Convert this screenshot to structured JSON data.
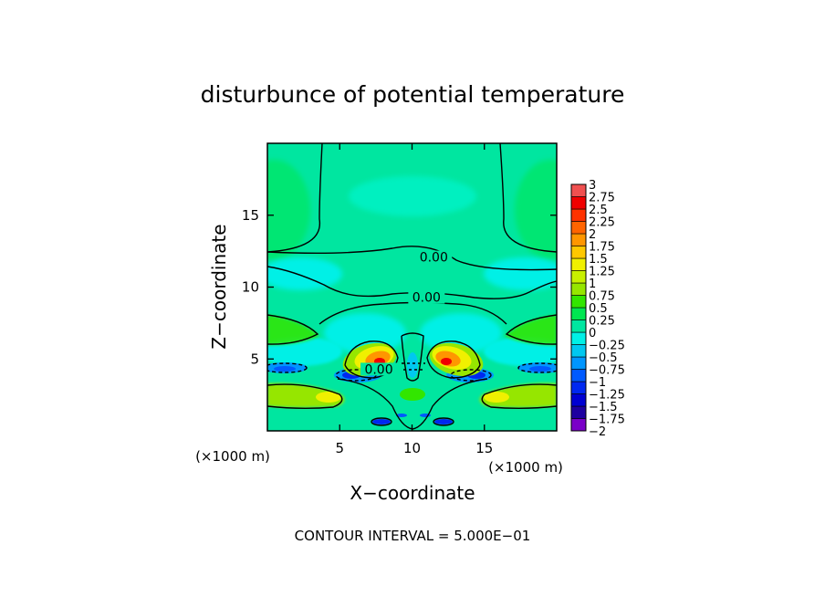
{
  "chart_data": {
    "type": "heatmap",
    "title": "disturbunce of potential temperature",
    "xlabel": "X−coordinate",
    "ylabel": "Z−coordinate",
    "x_unit": "(×1000 m)",
    "y_unit": "(×1000 m)",
    "xlim": [
      0,
      20
    ],
    "ylim": [
      0,
      20
    ],
    "x_ticks": [
      5,
      10,
      15
    ],
    "y_ticks": [
      5,
      10,
      15
    ],
    "x_tick_labels": [
      "5",
      "10",
      "15"
    ],
    "y_tick_labels": [
      "5",
      "10",
      "15"
    ],
    "footer": "CONTOUR INTERVAL = 5.000E−01",
    "contour_labels": [
      {
        "text": "0.00",
        "x": 11.5,
        "z": 11.9
      },
      {
        "text": "0.00",
        "x": 11.0,
        "z": 9.1
      },
      {
        "text": "0.00",
        "x": 7.7,
        "z": 4.1
      }
    ],
    "colorbar": {
      "levels": [
        -2,
        -1.75,
        -1.5,
        -1.25,
        -1,
        -0.75,
        -0.5,
        -0.25,
        0,
        0.25,
        0.5,
        0.75,
        1,
        1.25,
        1.5,
        1.75,
        2,
        2.25,
        2.5,
        2.75,
        3
      ],
      "labels": [
        "−2",
        "−1.75",
        "−1.5",
        "−1.25",
        "−1",
        "−0.75",
        "−0.5",
        "−0.25",
        "0",
        "0.25",
        "0.5",
        "0.75",
        "1",
        "1.25",
        "1.5",
        "1.75",
        "2",
        "2.25",
        "2.5",
        "2.75",
        "3"
      ],
      "colors": [
        "#7a00c8",
        "#1e00a0",
        "#0000d2",
        "#0028f0",
        "#005aff",
        "#0096ff",
        "#00c8f0",
        "#00f0e6",
        "#00e6a0",
        "#00e650",
        "#32e600",
        "#96e600",
        "#c8f000",
        "#f0f000",
        "#ffc800",
        "#ff9600",
        "#ff6400",
        "#ff3200",
        "#f00000",
        "#f05050",
        "#f0a0a0"
      ]
    }
  }
}
